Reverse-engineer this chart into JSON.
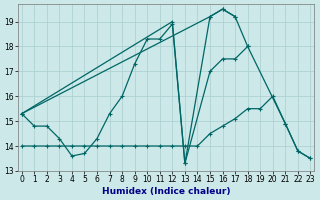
{
  "xlabel": "Humidex (Indice chaleur)",
  "bg_color": "#cce8e8",
  "line_color": "#006666",
  "grid_color": "#aacece",
  "xlim": [
    -0.3,
    23.3
  ],
  "ylim": [
    13.0,
    19.7
  ],
  "yticks": [
    13,
    14,
    15,
    16,
    17,
    18,
    19
  ],
  "xticks": [
    0,
    1,
    2,
    3,
    4,
    5,
    6,
    7,
    8,
    9,
    10,
    11,
    12,
    13,
    14,
    15,
    16,
    17,
    18,
    19,
    20,
    21,
    22,
    23
  ],
  "line1_x": [
    0,
    1,
    2,
    3,
    4,
    5,
    6,
    7,
    8,
    9,
    10,
    11,
    12,
    13,
    15,
    16,
    17,
    18
  ],
  "line1_y": [
    15.3,
    14.8,
    14.8,
    14.3,
    13.6,
    13.7,
    14.3,
    15.3,
    16.0,
    17.3,
    18.3,
    18.3,
    18.9,
    13.3,
    17.0,
    17.5,
    17.5,
    18.0
  ],
  "line2_x": [
    0,
    12,
    13,
    15,
    16,
    17
  ],
  "line2_y": [
    15.3,
    19.0,
    13.3,
    19.2,
    19.5,
    19.2
  ],
  "line3_x": [
    0,
    1,
    2,
    3,
    4,
    5,
    6,
    7,
    8,
    9,
    10,
    11,
    12,
    13,
    14,
    15,
    16,
    17,
    18,
    19,
    20,
    21,
    22,
    23
  ],
  "line3_y": [
    14.0,
    14.0,
    14.0,
    14.0,
    14.0,
    14.0,
    14.0,
    14.0,
    14.0,
    14.0,
    14.0,
    14.0,
    14.0,
    14.0,
    14.0,
    14.5,
    14.8,
    15.1,
    15.5,
    15.5,
    16.0,
    14.9,
    13.8,
    13.5
  ],
  "line4_x": [
    0,
    15,
    16,
    17,
    18,
    21,
    22,
    23
  ],
  "line4_y": [
    15.3,
    19.2,
    19.5,
    19.2,
    18.0,
    14.9,
    13.8,
    13.5
  ],
  "linewidth": 0.9,
  "markersize": 3.5,
  "xlabel_fontsize": 6.5,
  "xlabel_color": "#000088",
  "tick_fontsize": 5.5
}
